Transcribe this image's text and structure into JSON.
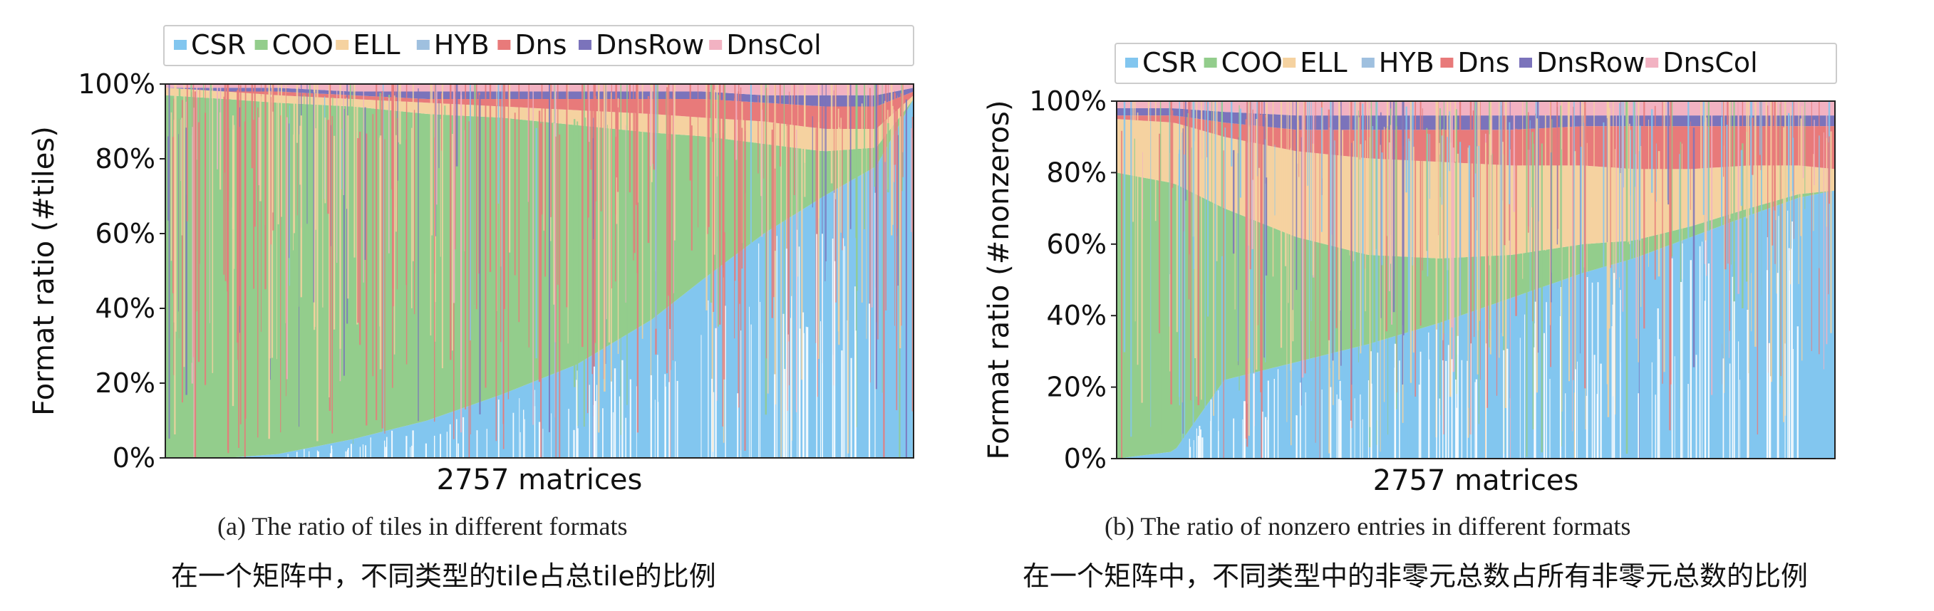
{
  "chart_data": [
    {
      "type": "area",
      "stacked": true,
      "normalized": true,
      "xlabel": "2757 matrices",
      "ylabel": "Format ratio (#tiles)",
      "yticks": [
        "0%",
        "20%",
        "40%",
        "60%",
        "80%",
        "100%"
      ],
      "ylim": [
        0,
        100
      ],
      "legend_position": "top",
      "grid": false,
      "x": [
        0.0,
        0.08,
        0.15,
        0.25,
        0.35,
        0.45,
        0.55,
        0.65,
        0.72,
        0.8,
        0.88,
        0.95,
        1.0
      ],
      "series": [
        {
          "name": "CSR",
          "color": "#82c6ef",
          "values": [
            0,
            0,
            1,
            5,
            10,
            17,
            25,
            37,
            48,
            60,
            70,
            78,
            96
          ]
        },
        {
          "name": "COO",
          "color": "#93cd8c",
          "values": [
            97,
            96,
            94,
            89,
            82,
            74,
            64,
            50,
            38,
            24,
            12,
            5,
            0
          ]
        },
        {
          "name": "ELL",
          "color": "#f5d2a0",
          "values": [
            2,
            2,
            2,
            2,
            3,
            3,
            4,
            5,
            5,
            6,
            6,
            5,
            1
          ]
        },
        {
          "name": "HYB",
          "color": "#9fc0df",
          "values": [
            0,
            0,
            0,
            0,
            0,
            0,
            0,
            0,
            0,
            0,
            0,
            0,
            0
          ]
        },
        {
          "name": "Dns",
          "color": "#e87a7a",
          "values": [
            0,
            0,
            1,
            1,
            1,
            2,
            3,
            4,
            5,
            5,
            6,
            6,
            1
          ]
        },
        {
          "name": "DnsRow",
          "color": "#7b73bb",
          "values": [
            0,
            1,
            1,
            1,
            2,
            2,
            2,
            2,
            2,
            2,
            3,
            3,
            1
          ]
        },
        {
          "name": "DnsCol",
          "color": "#f2b2c2",
          "values": [
            1,
            1,
            1,
            2,
            2,
            2,
            2,
            2,
            2,
            3,
            3,
            3,
            1
          ]
        }
      ]
    },
    {
      "type": "area",
      "stacked": true,
      "normalized": true,
      "xlabel": "2757 matrices",
      "ylabel": "Format ratio (#nonzeros)",
      "yticks": [
        "0%",
        "20%",
        "40%",
        "60%",
        "80%",
        "100%"
      ],
      "ylim": [
        0,
        100
      ],
      "legend_position": "top",
      "grid": false,
      "x": [
        0.0,
        0.08,
        0.15,
        0.25,
        0.35,
        0.45,
        0.55,
        0.65,
        0.72,
        0.8,
        0.88,
        0.95,
        1.0
      ],
      "series": [
        {
          "name": "CSR",
          "color": "#82c6ef",
          "values": [
            0,
            2,
            22,
            27,
            32,
            38,
            45,
            52,
            56,
            62,
            68,
            73,
            75
          ]
        },
        {
          "name": "COO",
          "color": "#93cd8c",
          "values": [
            80,
            75,
            48,
            35,
            25,
            18,
            12,
            8,
            5,
            3,
            2,
            1,
            0
          ]
        },
        {
          "name": "ELL",
          "color": "#f5d2a0",
          "values": [
            15,
            17,
            20,
            24,
            27,
            27,
            25,
            22,
            20,
            16,
            12,
            8,
            6
          ]
        },
        {
          "name": "HYB",
          "color": "#9fc0df",
          "values": [
            0,
            0,
            0,
            0,
            0,
            0,
            0,
            0,
            0,
            0,
            0,
            0,
            0
          ]
        },
        {
          "name": "Dns",
          "color": "#e87a7a",
          "values": [
            1,
            2,
            4,
            6,
            8,
            9,
            10,
            11,
            12,
            12,
            11,
            11,
            12
          ]
        },
        {
          "name": "DnsRow",
          "color": "#7b73bb",
          "values": [
            2,
            2,
            3,
            4,
            4,
            4,
            4,
            3,
            3,
            3,
            3,
            3,
            3
          ]
        },
        {
          "name": "DnsCol",
          "color": "#f2b2c2",
          "values": [
            2,
            2,
            3,
            4,
            4,
            4,
            4,
            4,
            4,
            4,
            4,
            4,
            4
          ]
        }
      ]
    }
  ],
  "captions": {
    "a": "(a) The ratio of tiles in different formats",
    "b": "(b) The ratio of nonzero entries in different formats",
    "a_zh": "在一个矩阵中，不同类型的tile占总tile的比例",
    "b_zh": "在一个矩阵中，不同类型中的非零元总数占所有非零元总数的比例"
  }
}
